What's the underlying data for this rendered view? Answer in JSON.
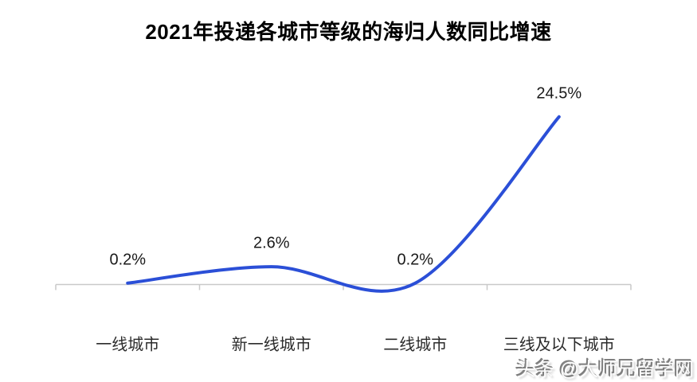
{
  "header": {
    "title": "2021年投递各城市等级的海归人数同比增速"
  },
  "chart_data": {
    "type": "line",
    "title": "2021年投递各城市等级的海归人数同比增速",
    "categories": [
      "一线城市",
      "新一线城市",
      "二线城市",
      "三线及以下城市"
    ],
    "values": [
      0.2,
      2.6,
      0.2,
      24.5
    ],
    "data_labels": [
      "0.2%",
      "2.6%",
      "0.2%",
      "24.5%"
    ],
    "unit": "%",
    "smooth": true,
    "grid": false,
    "legend": "none",
    "y_baseline": 0,
    "markers": false
  },
  "colors": {
    "line": "#2b4fd7",
    "axis": "#c9c9c9",
    "title_text": "#000000",
    "data_label_text": "#1a1a1a",
    "category_text": "#2b2b2b",
    "watermark_fill": "#fdfdfd",
    "watermark_shadow": "#7d7d7d"
  },
  "watermark": {
    "text": "头条 @大师兄留学网"
  }
}
